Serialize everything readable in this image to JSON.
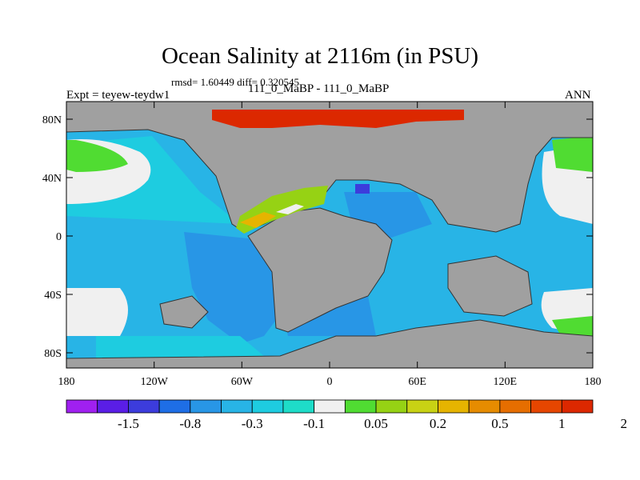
{
  "title": "Ocean Salinity at 2116m (in PSU)",
  "stats_line": "rmsd= 1.60449 diff= 0.320545",
  "experiment_label": "Expt = teyew-teydw1",
  "comparison_label": "111_0_MaBP - 111_0_MaBP",
  "season_label": "ANN",
  "map": {
    "lat_ticks": [
      "80N",
      "40N",
      "0",
      "40S",
      "80S"
    ],
    "lon_ticks": [
      "180",
      "120W",
      "60W",
      "0",
      "60E",
      "120E",
      "180"
    ],
    "land_color": "#a0a0a0"
  },
  "colorbar": {
    "colors": [
      "#a020f0",
      "#5a1ee6",
      "#3c3cdc",
      "#1e6ee6",
      "#2896e6",
      "#28b4e6",
      "#1ecce0",
      "#1edcc8",
      "#f0f0f0",
      "#50dc32",
      "#96d214",
      "#c8d214",
      "#e6b400",
      "#e68c00",
      "#e66e00",
      "#e64600",
      "#dc2800"
    ],
    "labels": [
      "-1.5",
      "-0.8",
      "-0.3",
      "-0.1",
      "0.05",
      "0.2",
      "0.5",
      "1",
      "2"
    ]
  }
}
